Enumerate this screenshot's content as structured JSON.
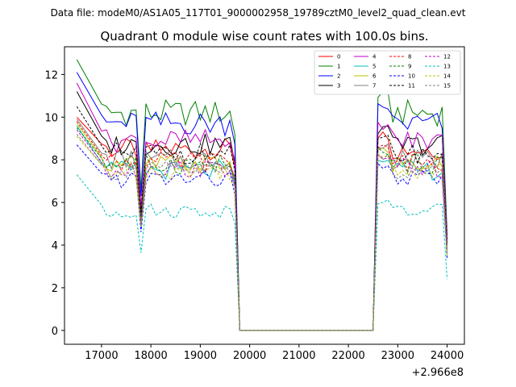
{
  "figure": {
    "suptitle": "Data file: modeM0/AS1A05_117T01_9000002958_19789cztM0_level2_quad_clean.evt"
  },
  "chart_data": {
    "type": "line",
    "title": "Quadrant 0 module wise count rates with 100.0s bins.",
    "xlabel": "",
    "ylabel": "",
    "offset_label": "+2.966e8",
    "xlim": [
      16250,
      24350
    ],
    "ylim": [
      -0.65,
      13.3
    ],
    "xticks": [
      17000,
      18000,
      19000,
      20000,
      21000,
      22000,
      23000,
      24000
    ],
    "xtick_labels": [
      "17000",
      "18000",
      "19000",
      "20000",
      "21000",
      "22000",
      "23000",
      "24000"
    ],
    "yticks": [
      0,
      2,
      4,
      6,
      8,
      10,
      12
    ],
    "ytick_labels": [
      "0",
      "2",
      "4",
      "6",
      "8",
      "10",
      "12"
    ],
    "legend_position": "top-right",
    "legend_columns": 4,
    "series": [
      {
        "name": "0",
        "color": "#ff0000",
        "dashed": false,
        "level": 8.5,
        "start": 10.0,
        "end_drop": 4.0
      },
      {
        "name": "1",
        "color": "#008000",
        "dashed": false,
        "level": 10.2,
        "start": 12.7,
        "end_drop": 4.5
      },
      {
        "name": "2",
        "color": "#0000ff",
        "dashed": false,
        "level": 9.7,
        "start": 12.1,
        "end_drop": 4.3
      },
      {
        "name": "3",
        "color": "#000000",
        "dashed": false,
        "level": 8.7,
        "start": 11.2,
        "end_drop": 4.2
      },
      {
        "name": "4",
        "color": "#bf00bf",
        "dashed": false,
        "level": 8.9,
        "start": 11.6,
        "end_drop": 4.2
      },
      {
        "name": "5",
        "color": "#00bfbf",
        "dashed": false,
        "level": 7.5,
        "start": 9.6,
        "end_drop": 3.5
      },
      {
        "name": "6",
        "color": "#bfbf00",
        "dashed": false,
        "level": 7.8,
        "start": 9.7,
        "end_drop": 3.7
      },
      {
        "name": "7",
        "color": "#808080",
        "dashed": false,
        "level": 8.0,
        "start": 9.9,
        "end_drop": 3.8
      },
      {
        "name": "8",
        "color": "#ff0000",
        "dashed": true,
        "level": 7.9,
        "start": 9.8,
        "end_drop": 3.8
      },
      {
        "name": "9",
        "color": "#008000",
        "dashed": true,
        "level": 7.8,
        "start": 9.5,
        "end_drop": 3.7
      },
      {
        "name": "10",
        "color": "#0000ff",
        "dashed": true,
        "level": 7.1,
        "start": 8.7,
        "end_drop": 3.4
      },
      {
        "name": "11",
        "color": "#000000",
        "dashed": true,
        "level": 8.3,
        "start": 10.5,
        "end_drop": 4.0
      },
      {
        "name": "12",
        "color": "#bf00bf",
        "dashed": true,
        "level": 7.6,
        "start": 9.4,
        "end_drop": 3.6
      },
      {
        "name": "13",
        "color": "#00bfbf",
        "dashed": true,
        "level": 5.6,
        "start": 7.3,
        "end_drop": 2.4
      },
      {
        "name": "14",
        "color": "#bfbf00",
        "dashed": true,
        "level": 7.5,
        "start": 9.1,
        "end_drop": 3.5
      },
      {
        "name": "15",
        "color": "#808080",
        "dashed": true,
        "level": 7.5,
        "start": 9.2,
        "end_drop": 3.6
      }
    ],
    "time_profile": {
      "t_start": 16500,
      "t_end": 24000,
      "bin": 100,
      "dip_at": 17800,
      "dip_factor": 0.65,
      "dip2_at": 23950,
      "gap_start": 19700,
      "gap_end": 22600,
      "gap_value": 0
    }
  }
}
